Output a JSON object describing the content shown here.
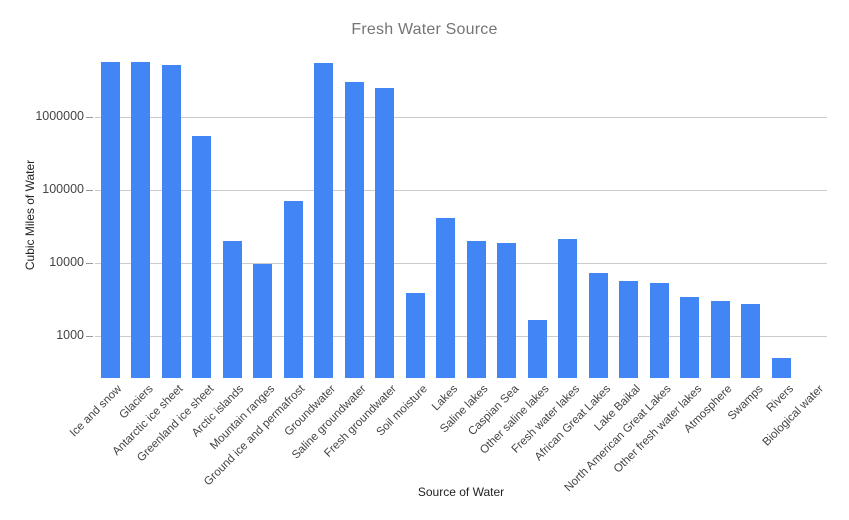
{
  "chart_data": {
    "type": "bar",
    "title": "Fresh Water Source",
    "xlabel": "Source of Water",
    "ylabel": "Cubic Miles of Water",
    "scale": "log",
    "grid": true,
    "legend": "none",
    "ylim": [
      269,
      10000000
    ],
    "yticks": [
      1000,
      10000,
      100000,
      1000000
    ],
    "categories": [
      "Ice and snow",
      "Glaciers",
      "Antarctic ice sheet",
      "Greenland ice sheet",
      "Arctic islands",
      "Mountain ranges",
      "Ground ice and permafrost",
      "Groundwater",
      "Saline groundwater",
      "Fresh groundwater",
      "Soil moisture",
      "Lakes",
      "Saline lakes",
      "Caspian Sea",
      "Other saline lakes",
      "Fresh water lakes",
      "African Great Lakes",
      "Lake Baikal",
      "North American Great Lakes",
      "Other fresh water lakes",
      "Atmosphere",
      "Swamps",
      "Rivers",
      "Biological water"
    ],
    "values": [
      5773000,
      5773000,
      5182000,
      561000,
      20000,
      9700,
      71970,
      5614000,
      3088000,
      2526000,
      3959,
      42320,
      20490,
      18800,
      1690,
      21830,
      7300,
      5662,
      5439,
      3430,
      3095,
      2752,
      509,
      269
    ],
    "colors": {
      "bar": "#4285f4",
      "title": "#757575",
      "axis_text": "#444444",
      "axis_title": "#222222",
      "gridline": "#cccccc",
      "background": "#ffffff"
    }
  }
}
